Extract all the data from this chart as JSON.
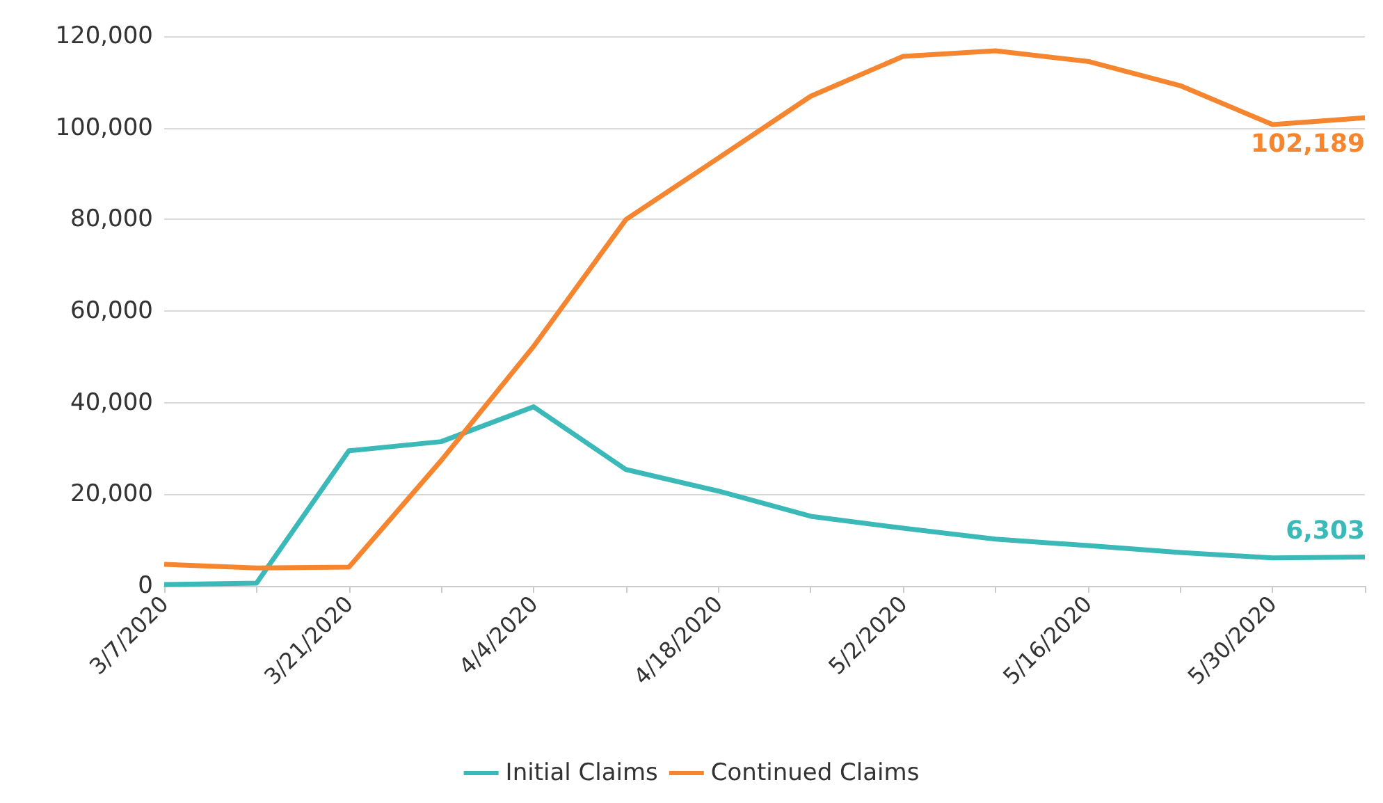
{
  "chart_data": {
    "type": "line",
    "categories": [
      "3/7/2020",
      null,
      "3/21/2020",
      null,
      "4/4/2020",
      null,
      "4/18/2020",
      null,
      "5/2/2020",
      null,
      "5/16/2020",
      null,
      "5/30/2020",
      null
    ],
    "series": [
      {
        "name": "Initial Claims",
        "color": "#3bb8b8",
        "values": [
          300,
          600,
          29500,
          31500,
          39100,
          25400,
          20700,
          15200,
          12600,
          10200,
          8800,
          7300,
          6100,
          6303
        ],
        "value_labels": [
          null,
          null,
          null,
          null,
          null,
          null,
          null,
          null,
          null,
          null,
          null,
          null,
          null,
          "6,303"
        ]
      },
      {
        "name": "Continued Claims",
        "color": "#f5852f",
        "values": [
          4700,
          3900,
          4100,
          27400,
          52300,
          80000,
          93400,
          106900,
          115600,
          116800,
          114500,
          109200,
          100700,
          102189
        ],
        "value_labels": [
          null,
          null,
          null,
          null,
          null,
          null,
          null,
          null,
          null,
          null,
          null,
          null,
          null,
          "102,189"
        ]
      }
    ],
    "ylim": [
      0,
      120000
    ],
    "yticks": [
      0,
      {
        "value": 20000,
        "label": "20,000"
      },
      {
        "value": 40000,
        "label": "40,000"
      },
      {
        "value": 60000,
        "label": "60,000"
      },
      {
        "value": 80000,
        "label": "80,000"
      },
      {
        "value": 100000,
        "label": "100,000"
      },
      {
        "value": 120000,
        "label": "120,000"
      }
    ],
    "grid": "y",
    "legend": "bottom",
    "marker": "none",
    "line_style": "solid"
  }
}
